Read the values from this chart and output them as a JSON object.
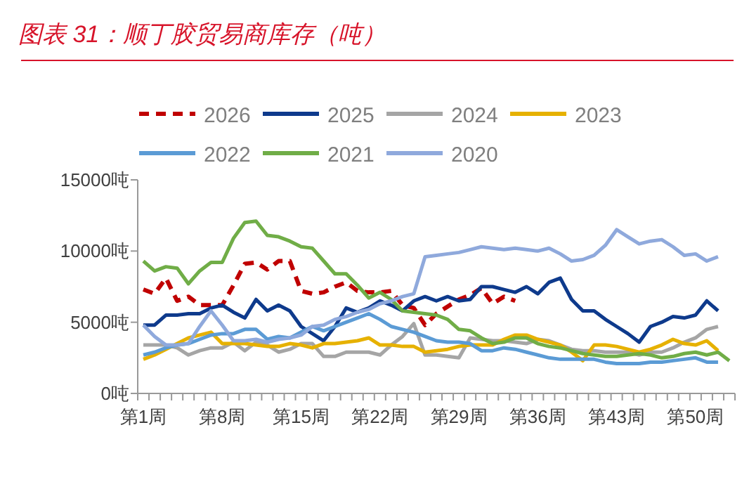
{
  "chart_data": {
    "type": "line",
    "title": "图表 31：顺丁胶贸易商库存（吨）",
    "legend": "top",
    "line_style": "solid",
    "categories": [
      "第1周",
      null,
      null,
      null,
      null,
      null,
      null,
      "第8周",
      null,
      null,
      null,
      null,
      null,
      null,
      "第15周",
      null,
      null,
      null,
      null,
      null,
      null,
      "第22周",
      null,
      null,
      null,
      null,
      null,
      null,
      "第29周",
      null,
      null,
      null,
      null,
      null,
      null,
      "第36周",
      null,
      null,
      null,
      null,
      null,
      null,
      "第43周",
      null,
      null,
      null,
      null,
      null,
      null,
      "第50周",
      null,
      null,
      null
    ],
    "ylim": [
      0,
      15000
    ],
    "yticks": [
      {
        "value": 0,
        "label": "0吨"
      },
      {
        "value": 5000,
        "label": "5000吨"
      },
      {
        "value": 10000,
        "label": "10000吨"
      },
      {
        "value": 15000,
        "label": "15000吨"
      }
    ],
    "series": [
      {
        "name": "2026",
        "color": "#c00000",
        "line_style": "dashed",
        "values": [
          7300,
          7000,
          8100,
          6500,
          6800,
          6200,
          6200,
          6200,
          7600,
          9100,
          9200,
          8700,
          9300,
          9300,
          7200,
          7000,
          7100,
          7500,
          7800,
          7200,
          7100,
          7100,
          7200,
          6200,
          6000,
          4800,
          5600,
          6100,
          6600,
          6900,
          7400,
          6300,
          6800,
          6500,
          null,
          null,
          null,
          null,
          null,
          null,
          null,
          null,
          null,
          null,
          null,
          null,
          null,
          null,
          null,
          null,
          null,
          null,
          null
        ]
      },
      {
        "name": "2025",
        "color": "#0e3a8c",
        "values": [
          4800,
          4800,
          5500,
          5500,
          5600,
          5600,
          6000,
          6200,
          5700,
          5300,
          6600,
          5800,
          6200,
          5800,
          4700,
          4200,
          3700,
          4700,
          6000,
          5700,
          6000,
          6500,
          6200,
          5800,
          6500,
          6800,
          6500,
          6800,
          6500,
          6600,
          7500,
          7500,
          7300,
          7100,
          7500,
          7000,
          7800,
          8100,
          6600,
          5800,
          5800,
          5200,
          4700,
          4200,
          3600,
          4700,
          5000,
          5400,
          5300,
          5500,
          6500,
          5800,
          null
        ]
      },
      {
        "name": "2024",
        "color": "#a5a5a5",
        "values": [
          3400,
          3400,
          3400,
          3200,
          2700,
          3000,
          3200,
          3200,
          3600,
          3000,
          3600,
          3400,
          2900,
          3100,
          3500,
          3500,
          2600,
          2600,
          2900,
          2900,
          2900,
          2700,
          3400,
          4000,
          4900,
          2700,
          2700,
          2600,
          2500,
          3900,
          3800,
          3700,
          3700,
          3600,
          3500,
          3800,
          3700,
          3400,
          3100,
          3000,
          3000,
          2900,
          2900,
          2900,
          2700,
          2900,
          2900,
          3200,
          3600,
          3900,
          4500,
          4700,
          null
        ]
      },
      {
        "name": "2023",
        "color": "#e6b100",
        "values": [
          2400,
          2700,
          3100,
          3500,
          3900,
          4100,
          4300,
          3500,
          3500,
          3500,
          3400,
          3300,
          3300,
          3500,
          3400,
          3200,
          3500,
          3500,
          3600,
          3700,
          3900,
          3400,
          3400,
          3300,
          3300,
          2900,
          3000,
          3100,
          3300,
          3400,
          3400,
          3400,
          3800,
          4100,
          4100,
          3800,
          3600,
          3400,
          2900,
          2300,
          3400,
          3400,
          3300,
          3100,
          2900,
          3100,
          3400,
          3800,
          3500,
          3400,
          3700,
          3000,
          null
        ]
      },
      {
        "name": "2022",
        "color": "#5b9bd5",
        "values": [
          2700,
          2900,
          3200,
          3400,
          3500,
          3800,
          4100,
          4200,
          4200,
          4500,
          4500,
          3800,
          4000,
          3900,
          4300,
          4700,
          4400,
          4700,
          5000,
          5300,
          5600,
          5200,
          4700,
          4500,
          4300,
          4000,
          3700,
          3600,
          3600,
          3500,
          3000,
          3000,
          3200,
          3100,
          2900,
          2700,
          2500,
          2400,
          2400,
          2400,
          2400,
          2200,
          2100,
          2100,
          2100,
          2200,
          2200,
          2300,
          2400,
          2500,
          2200,
          2200,
          null
        ]
      },
      {
        "name": "2021",
        "color": "#70ad47",
        "values": [
          9300,
          8600,
          8900,
          8800,
          7700,
          8600,
          9200,
          9200,
          10900,
          12000,
          12100,
          11100,
          11000,
          10700,
          10300,
          10200,
          9300,
          8400,
          8400,
          7600,
          6700,
          7100,
          6600,
          5800,
          5700,
          5600,
          5500,
          5200,
          4500,
          4400,
          3900,
          3500,
          3600,
          3900,
          3900,
          3500,
          3300,
          3200,
          3000,
          2800,
          2700,
          2600,
          2600,
          2700,
          2800,
          2700,
          2500,
          2600,
          2800,
          2900,
          2700,
          2900,
          2300
        ]
      },
      {
        "name": "2020",
        "color": "#8fa9dc",
        "values": [
          4800,
          4000,
          3400,
          3400,
          3500,
          4700,
          5800,
          4800,
          3700,
          3700,
          3800,
          3600,
          3800,
          3900,
          4100,
          4700,
          4800,
          5200,
          5400,
          5700,
          5900,
          6300,
          6500,
          6800,
          7000,
          9600,
          9700,
          9800,
          9900,
          10100,
          10300,
          10200,
          10100,
          10200,
          10100,
          10000,
          10200,
          9800,
          9300,
          9400,
          9700,
          10400,
          11500,
          11000,
          10500,
          10700,
          10800,
          10300,
          9700,
          9800,
          9300,
          9600,
          null
        ]
      }
    ]
  }
}
